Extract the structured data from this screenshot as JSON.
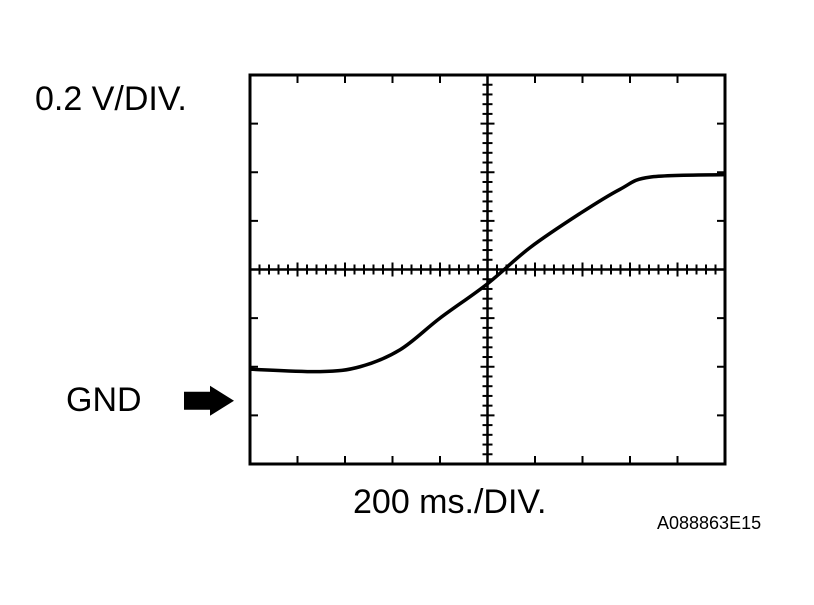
{
  "chart_data": {
    "type": "line",
    "volts_per_div_label": "0.2 V/DIV.",
    "time_per_div_label": "200 ms./DIV.",
    "ground_label": "GND",
    "figure_code": "A088863E15",
    "volts_per_div": 0.2,
    "ms_per_div": 200,
    "divisions": {
      "horizontal": 10,
      "vertical": 8
    },
    "xlim": [
      0,
      2000
    ],
    "ylim": [
      -0.26,
      1.34
    ],
    "ground_level": 0,
    "grid": true,
    "series": [
      {
        "x": [
          0,
          295,
          463,
          632,
          800,
          998,
          1179,
          1389,
          1558,
          1684,
          2000
        ],
        "y": [
          0.13,
          0.12,
          0.14,
          0.21,
          0.34,
          0.48,
          0.63,
          0.77,
          0.87,
          0.92,
          0.93
        ]
      }
    ],
    "colors": {
      "trace": "#000000",
      "background": "#ffffff"
    }
  }
}
